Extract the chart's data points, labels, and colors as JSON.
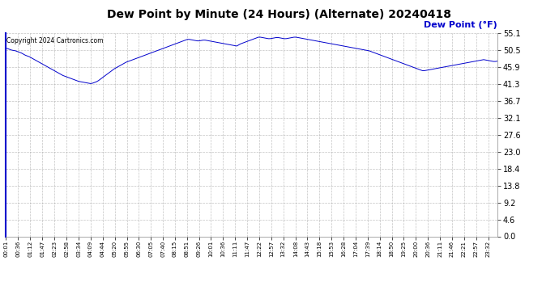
{
  "title": "Dew Point by Minute (24 Hours) (Alternate) 20240418",
  "ylabel_text": "Dew Point (°F)",
  "copyright": "Copyright 2024 Cartronics.com",
  "line_color": "#0000cc",
  "ylabel_color": "#0000cc",
  "background_color": "#ffffff",
  "plot_bg_color": "#ffffff",
  "grid_color": "#aaaaaa",
  "title_fontsize": 10,
  "yticks": [
    0.0,
    4.6,
    9.2,
    13.8,
    18.4,
    23.0,
    27.6,
    32.1,
    36.7,
    41.3,
    45.9,
    50.5,
    55.1
  ],
  "ylim": [
    0.0,
    57.0
  ],
  "xtick_labels": [
    "00:01",
    "00:36",
    "01:12",
    "01:47",
    "02:23",
    "02:58",
    "03:34",
    "04:09",
    "04:44",
    "05:20",
    "05:55",
    "06:30",
    "07:05",
    "07:40",
    "08:15",
    "08:51",
    "09:26",
    "10:01",
    "10:36",
    "11:11",
    "11:47",
    "12:22",
    "12:57",
    "13:32",
    "14:08",
    "14:43",
    "15:18",
    "15:53",
    "16:28",
    "17:04",
    "17:39",
    "18:14",
    "18:50",
    "19:25",
    "20:00",
    "20:36",
    "21:11",
    "21:46",
    "22:21",
    "22:57",
    "23:32"
  ],
  "dew_point_data": [
    51.1,
    51.0,
    50.8,
    50.6,
    50.5,
    50.4,
    50.2,
    50.0,
    49.8,
    49.5,
    49.2,
    49.0,
    48.8,
    48.5,
    48.2,
    47.9,
    47.6,
    47.3,
    47.0,
    46.7,
    46.4,
    46.1,
    45.8,
    45.5,
    45.2,
    44.9,
    44.6,
    44.3,
    44.0,
    43.7,
    43.5,
    43.3,
    43.1,
    42.9,
    42.7,
    42.5,
    42.3,
    42.1,
    42.0,
    41.9,
    41.8,
    41.7,
    41.6,
    41.5,
    41.6,
    41.8,
    42.0,
    42.3,
    42.7,
    43.1,
    43.5,
    43.9,
    44.3,
    44.7,
    45.1,
    45.5,
    45.8,
    46.1,
    46.4,
    46.7,
    47.0,
    47.3,
    47.5,
    47.7,
    47.9,
    48.1,
    48.3,
    48.5,
    48.7,
    48.9,
    49.1,
    49.3,
    49.5,
    49.7,
    49.9,
    50.1,
    50.3,
    50.5,
    50.7,
    50.9,
    51.1,
    51.3,
    51.5,
    51.7,
    51.9,
    52.1,
    52.3,
    52.5,
    52.7,
    52.9,
    53.1,
    53.3,
    53.5,
    53.5,
    53.4,
    53.3,
    53.2,
    53.1,
    53.1,
    53.2,
    53.3,
    53.3,
    53.2,
    53.1,
    53.0,
    52.9,
    52.8,
    52.7,
    52.6,
    52.5,
    52.4,
    52.3,
    52.2,
    52.1,
    52.0,
    51.9,
    51.8,
    51.7,
    52.0,
    52.3,
    52.5,
    52.7,
    52.9,
    53.1,
    53.3,
    53.5,
    53.7,
    53.9,
    54.1,
    54.1,
    54.0,
    53.9,
    53.8,
    53.7,
    53.7,
    53.8,
    53.9,
    54.0,
    54.0,
    53.9,
    53.8,
    53.7,
    53.7,
    53.8,
    53.9,
    54.0,
    54.1,
    54.1,
    54.0,
    53.9,
    53.8,
    53.7,
    53.6,
    53.5,
    53.4,
    53.3,
    53.2,
    53.1,
    53.0,
    52.9,
    52.8,
    52.7,
    52.6,
    52.5,
    52.4,
    52.3,
    52.2,
    52.1,
    52.0,
    51.9,
    51.8,
    51.7,
    51.6,
    51.5,
    51.4,
    51.3,
    51.2,
    51.1,
    51.0,
    50.9,
    50.8,
    50.7,
    50.6,
    50.5,
    50.4,
    50.2,
    50.0,
    49.8,
    49.6,
    49.4,
    49.2,
    49.0,
    48.8,
    48.6,
    48.4,
    48.2,
    48.0,
    47.8,
    47.6,
    47.4,
    47.2,
    47.0,
    46.8,
    46.6,
    46.4,
    46.2,
    46.0,
    45.8,
    45.6,
    45.4,
    45.2,
    45.0,
    45.0,
    45.1,
    45.2,
    45.3,
    45.4,
    45.5,
    45.6,
    45.7,
    45.8,
    45.9,
    46.0,
    46.1,
    46.2,
    46.3,
    46.4,
    46.5,
    46.6,
    46.7,
    46.8,
    46.9,
    47.0,
    47.1,
    47.2,
    47.3,
    47.4,
    47.5,
    47.6,
    47.7,
    47.8,
    47.9,
    48.0,
    47.9,
    47.8,
    47.7,
    47.6,
    47.5,
    47.5,
    47.6
  ]
}
